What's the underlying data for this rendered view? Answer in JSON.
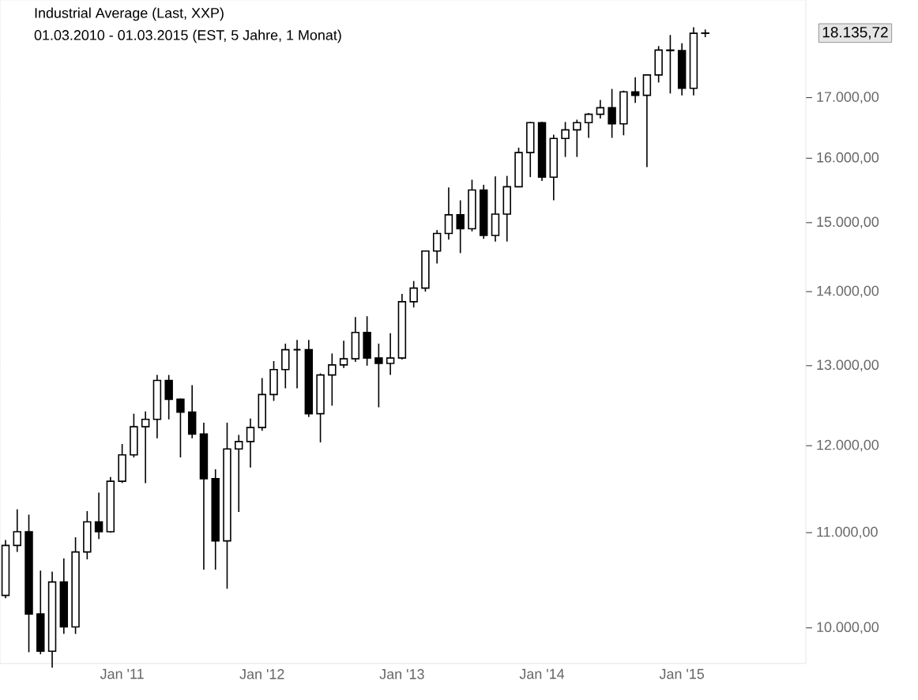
{
  "chart_data": {
    "type": "candlestick",
    "title": "Industrial Average (Last, XXP)",
    "subtitle": "01.03.2010 - 01.03.2015 (EST, 5 Jahre, 1 Monat)",
    "x": [
      "2010-03",
      "2010-04",
      "2010-05",
      "2010-06",
      "2010-07",
      "2010-08",
      "2010-09",
      "2010-10",
      "2010-11",
      "2010-12",
      "2011-01",
      "2011-02",
      "2011-03",
      "2011-04",
      "2011-05",
      "2011-06",
      "2011-07",
      "2011-08",
      "2011-09",
      "2011-10",
      "2011-11",
      "2011-12",
      "2012-01",
      "2012-02",
      "2012-03",
      "2012-04",
      "2012-05",
      "2012-06",
      "2012-07",
      "2012-08",
      "2012-09",
      "2012-10",
      "2012-11",
      "2012-12",
      "2013-01",
      "2013-02",
      "2013-03",
      "2013-04",
      "2013-05",
      "2013-06",
      "2013-07",
      "2013-08",
      "2013-09",
      "2013-10",
      "2013-11",
      "2013-12",
      "2014-01",
      "2014-02",
      "2014-03",
      "2014-04",
      "2014-05",
      "2014-06",
      "2014-07",
      "2014-08",
      "2014-09",
      "2014-10",
      "2014-11",
      "2014-12",
      "2015-01",
      "2015-02",
      "2015-03"
    ],
    "ohlc": [
      [
        10330,
        10920,
        10300,
        10860
      ],
      [
        10860,
        11260,
        10790,
        11010
      ],
      [
        11010,
        11200,
        9760,
        10140
      ],
      [
        10140,
        10590,
        9740,
        9770
      ],
      [
        9770,
        10580,
        9610,
        10470
      ],
      [
        10470,
        10720,
        9940,
        10010
      ],
      [
        10010,
        10950,
        9940,
        10790
      ],
      [
        10790,
        11240,
        10710,
        11120
      ],
      [
        11120,
        11450,
        10930,
        11010
      ],
      [
        11010,
        11630,
        11000,
        11580
      ],
      [
        11580,
        12020,
        11560,
        11890
      ],
      [
        11890,
        12390,
        11860,
        12230
      ],
      [
        12230,
        12420,
        11560,
        12320
      ],
      [
        12320,
        12880,
        12090,
        12810
      ],
      [
        12810,
        12880,
        12320,
        12570
      ],
      [
        12570,
        12580,
        11860,
        12410
      ],
      [
        12410,
        12750,
        12090,
        12140
      ],
      [
        12140,
        12280,
        10600,
        11610
      ],
      [
        11610,
        11720,
        10600,
        10910
      ],
      [
        10910,
        12280,
        10400,
        11960
      ],
      [
        11960,
        12130,
        11230,
        12050
      ],
      [
        12050,
        12330,
        11740,
        12220
      ],
      [
        12220,
        12840,
        12180,
        12630
      ],
      [
        12630,
        13060,
        12550,
        12950
      ],
      [
        12950,
        13290,
        12710,
        13210
      ],
      [
        13210,
        13340,
        12710,
        13210
      ],
      [
        13210,
        13340,
        12350,
        12390
      ],
      [
        12390,
        12900,
        12040,
        12880
      ],
      [
        12880,
        13160,
        12490,
        13010
      ],
      [
        13010,
        13330,
        12970,
        13090
      ],
      [
        13090,
        13650,
        13050,
        13440
      ],
      [
        13440,
        13660,
        13000,
        13100
      ],
      [
        13100,
        13290,
        12470,
        13030
      ],
      [
        13030,
        13430,
        12880,
        13100
      ],
      [
        13100,
        13970,
        13080,
        13860
      ],
      [
        13860,
        14150,
        13780,
        14050
      ],
      [
        14050,
        14590,
        14000,
        14580
      ],
      [
        14580,
        14890,
        14400,
        14840
      ],
      [
        14840,
        15540,
        14750,
        15120
      ],
      [
        15120,
        15340,
        14550,
        14910
      ],
      [
        14910,
        15660,
        14870,
        15500
      ],
      [
        15500,
        15580,
        14760,
        14810
      ],
      [
        14810,
        15710,
        14720,
        15130
      ],
      [
        15130,
        15720,
        14720,
        15550
      ],
      [
        15550,
        16170,
        15540,
        16090
      ],
      [
        16090,
        16590,
        15700,
        16580
      ],
      [
        16580,
        16590,
        15640,
        15700
      ],
      [
        15700,
        16380,
        15340,
        16320
      ],
      [
        16320,
        16590,
        16020,
        16460
      ],
      [
        16460,
        16630,
        16020,
        16580
      ],
      [
        16580,
        16740,
        16330,
        16720
      ],
      [
        16720,
        16960,
        16650,
        16830
      ],
      [
        16830,
        17150,
        16330,
        16560
      ],
      [
        16560,
        17120,
        16370,
        17100
      ],
      [
        17100,
        17350,
        16910,
        17040
      ],
      [
        17040,
        17400,
        15860,
        17390
      ],
      [
        17390,
        17900,
        17260,
        17830
      ],
      [
        17830,
        18100,
        17070,
        17820
      ],
      [
        17820,
        17950,
        17040,
        17160
      ],
      [
        17160,
        18240,
        17040,
        18130
      ],
      [
        18130,
        18200,
        18060,
        18135.72
      ]
    ],
    "log": true,
    "xlim": [
      "2010-02-17",
      "2015-11-20"
    ],
    "ylim": [
      9650,
      18750
    ],
    "xticks": [
      {
        "value": "2011-01",
        "label": "Jan '11"
      },
      {
        "value": "2012-01",
        "label": "Jan '12"
      },
      {
        "value": "2013-01",
        "label": "Jan '13"
      },
      {
        "value": "2014-01",
        "label": "Jan '14"
      },
      {
        "value": "2015-01",
        "label": "Jan '15"
      }
    ],
    "yticks": [
      {
        "value": 10000,
        "label": "10.000,00"
      },
      {
        "value": 11000,
        "label": "11.000,00"
      },
      {
        "value": 12000,
        "label": "12.000,00"
      },
      {
        "value": 13000,
        "label": "13.000,00"
      },
      {
        "value": 14000,
        "label": "14.000,00"
      },
      {
        "value": 15000,
        "label": "15.000,00"
      },
      {
        "value": 16000,
        "label": "16.000,00"
      },
      {
        "value": 17000,
        "label": "17.000,00"
      }
    ],
    "annotations": [
      "18.135,72"
    ]
  }
}
